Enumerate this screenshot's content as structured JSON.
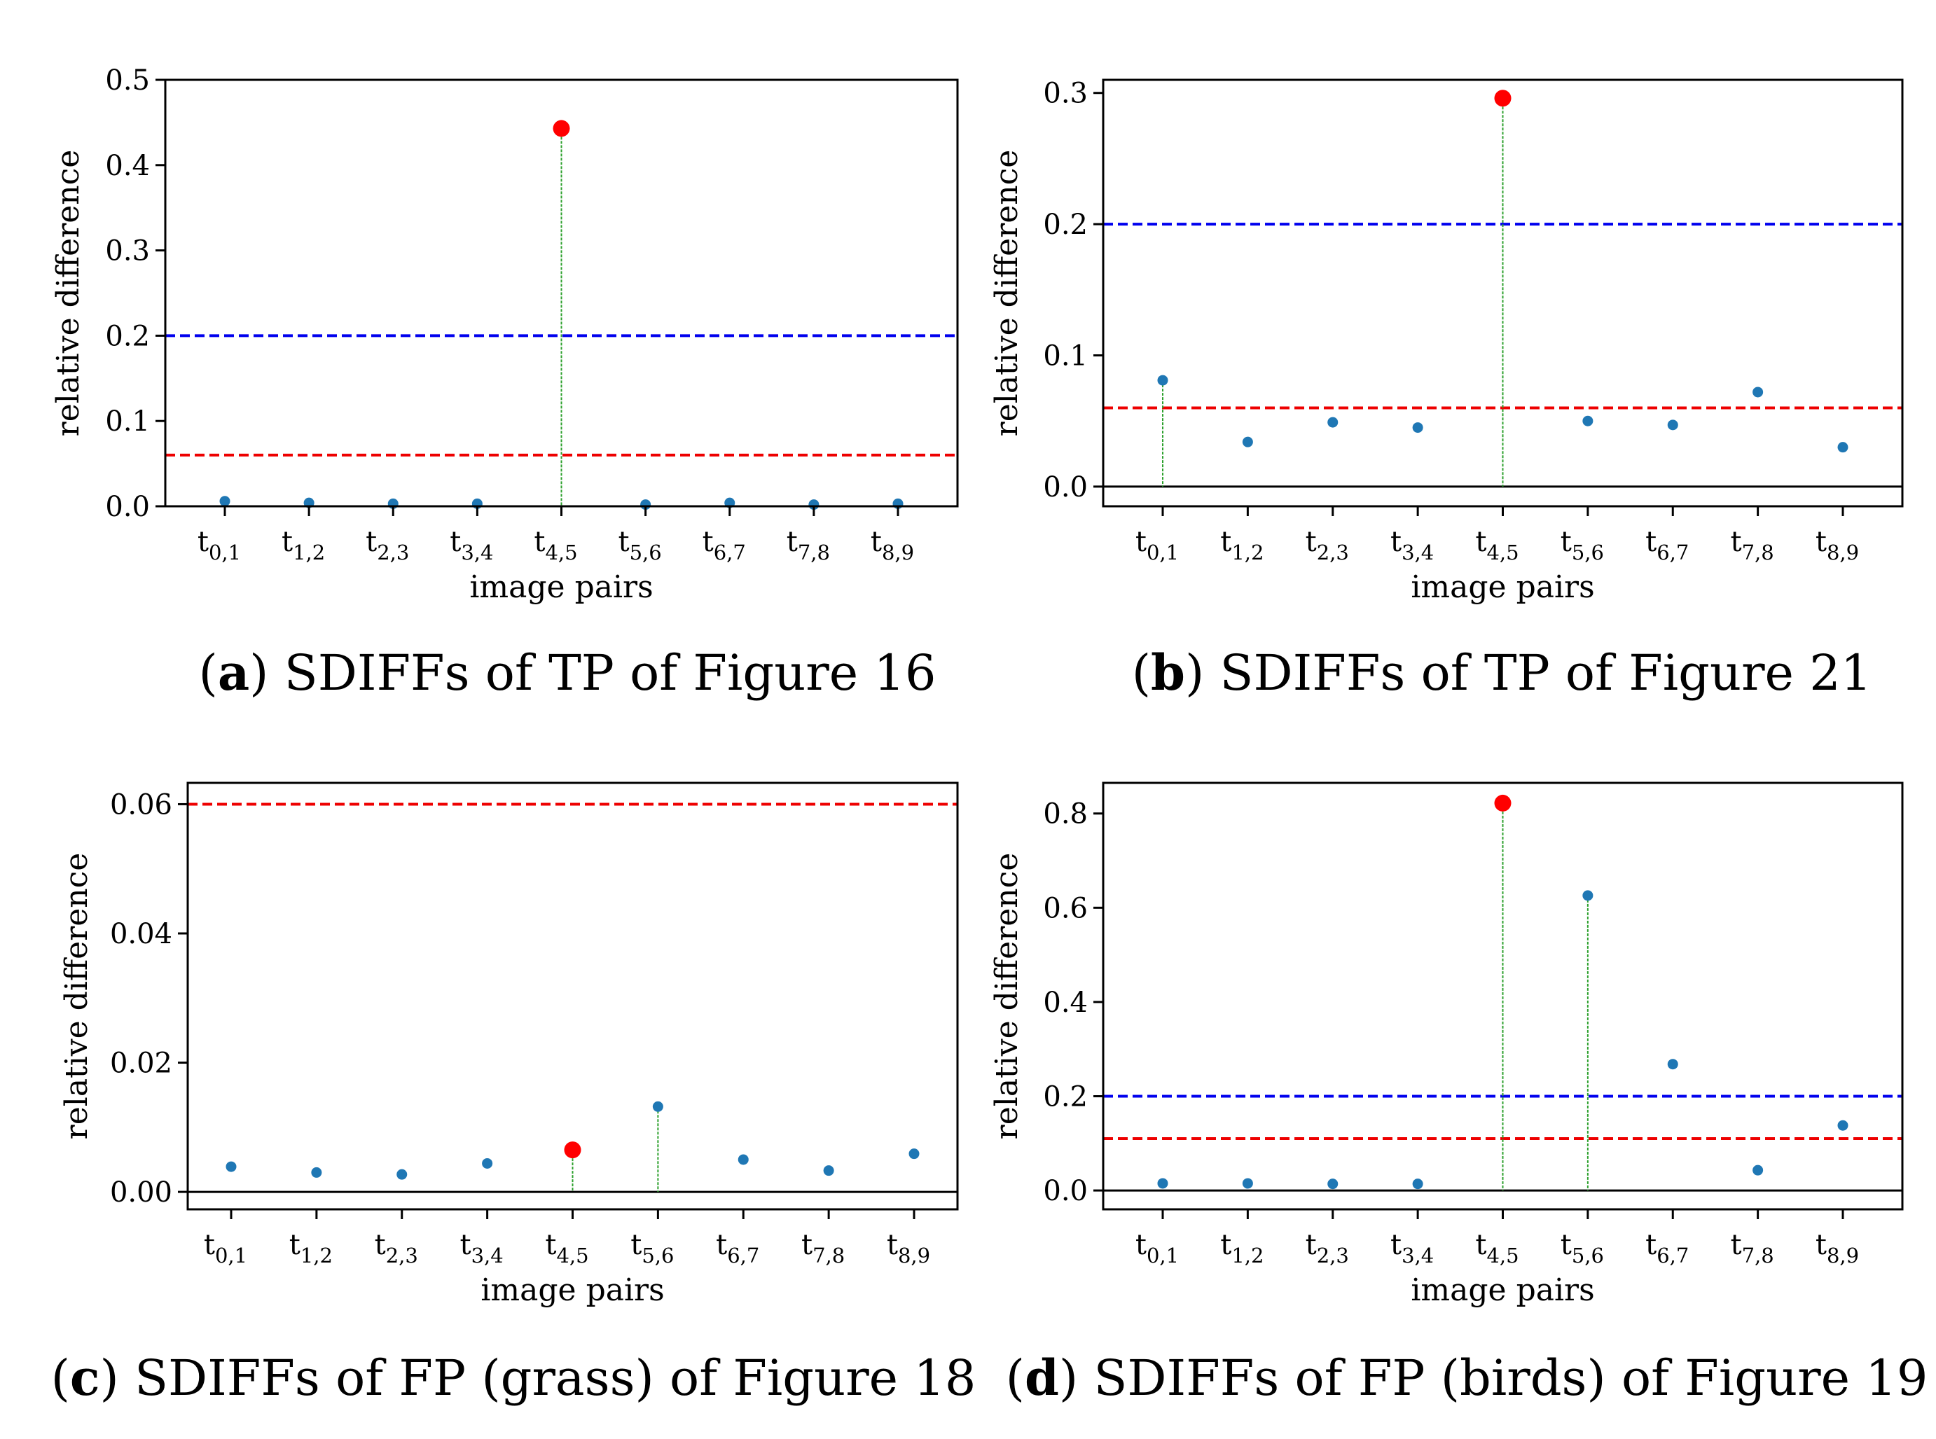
{
  "chart_data": [
    {
      "type": "scatter",
      "caption_letter": "a",
      "caption_text": " SDIFFs of TP of Figure 16",
      "xlabel": "image pairs",
      "ylabel": "relative difference",
      "categories": [
        "t0,1",
        "t1,2",
        "t2,3",
        "t3,4",
        "t4,5",
        "t5,6",
        "t6,7",
        "t7,8",
        "t8,9"
      ],
      "values": [
        0.006,
        0.004,
        0.003,
        0.003,
        0.443,
        0.002,
        0.004,
        0.002,
        0.003
      ],
      "highlight_index": 4,
      "stems": [
        4
      ],
      "ylim": [
        0,
        0.5
      ],
      "yticks": [
        0,
        0.1,
        0.2,
        0.3,
        0.4,
        0.5
      ],
      "ytick_labels": [
        "0.0",
        "0.1",
        "0.2",
        "0.3",
        "0.4",
        "0.5"
      ],
      "thresholds": [
        {
          "value": 0.2,
          "color": "#0000ee"
        },
        {
          "value": 0.06,
          "color": "#ee0000"
        }
      ],
      "zero_line": false
    },
    {
      "type": "scatter",
      "caption_letter": "b",
      "caption_text": " SDIFFs of TP of Figure 21",
      "xlabel": "image pairs",
      "ylabel": "relative difference",
      "categories": [
        "t0,1",
        "t1,2",
        "t2,3",
        "t3,4",
        "t4,5",
        "t5,6",
        "t6,7",
        "t7,8",
        "t8,9"
      ],
      "values": [
        0.081,
        0.034,
        0.049,
        0.045,
        0.296,
        0.05,
        0.047,
        0.072,
        0.03
      ],
      "highlight_index": 4,
      "stems": [
        0,
        4
      ],
      "ylim": [
        -0.015,
        0.31
      ],
      "yticks": [
        0,
        0.1,
        0.2,
        0.3
      ],
      "ytick_labels": [
        "0.0",
        "0.1",
        "0.2",
        "0.3"
      ],
      "thresholds": [
        {
          "value": 0.2,
          "color": "#0000ee"
        },
        {
          "value": 0.06,
          "color": "#ee0000"
        }
      ],
      "zero_line": true
    },
    {
      "type": "scatter",
      "caption_letter": "c",
      "caption_text": " SDIFFs of FP (grass) of Figure 18",
      "xlabel": "image pairs",
      "ylabel": "relative difference",
      "categories": [
        "t0,1",
        "t1,2",
        "t2,3",
        "t3,4",
        "t4,5",
        "t5,6",
        "t6,7",
        "t7,8",
        "t8,9"
      ],
      "values": [
        0.0039,
        0.003,
        0.0027,
        0.0044,
        0.0065,
        0.0132,
        0.005,
        0.0033,
        0.0059
      ],
      "highlight_index": 4,
      "stems": [
        4,
        5
      ],
      "ylim": [
        -0.0027,
        0.0633
      ],
      "yticks": [
        0,
        0.02,
        0.04,
        0.06
      ],
      "ytick_labels": [
        "0.00",
        "0.02",
        "0.04",
        "0.06"
      ],
      "thresholds": [
        {
          "value": 0.06,
          "color": "#ee0000"
        }
      ],
      "zero_line": true
    },
    {
      "type": "scatter",
      "caption_letter": "d",
      "caption_text": " SDIFFs of FP (birds) of Figure 19",
      "xlabel": "image pairs",
      "ylabel": "relative difference",
      "categories": [
        "t0,1",
        "t1,2",
        "t2,3",
        "t3,4",
        "t4,5",
        "t5,6",
        "t6,7",
        "t7,8",
        "t8,9"
      ],
      "values": [
        0.015,
        0.015,
        0.014,
        0.014,
        0.822,
        0.626,
        0.268,
        0.043,
        0.138
      ],
      "highlight_index": 4,
      "stems": [
        4,
        5
      ],
      "ylim": [
        -0.04,
        0.865
      ],
      "yticks": [
        0,
        0.2,
        0.4,
        0.6,
        0.8
      ],
      "ytick_labels": [
        "0.0",
        "0.2",
        "0.4",
        "0.6",
        "0.8"
      ],
      "thresholds": [
        {
          "value": 0.2,
          "color": "#0000ee"
        },
        {
          "value": 0.11,
          "color": "#ee0000"
        }
      ],
      "zero_line": true
    }
  ],
  "colors": {
    "point": "#1f77b4",
    "highlight": "#ff0000",
    "stem": "#2ca02c"
  }
}
